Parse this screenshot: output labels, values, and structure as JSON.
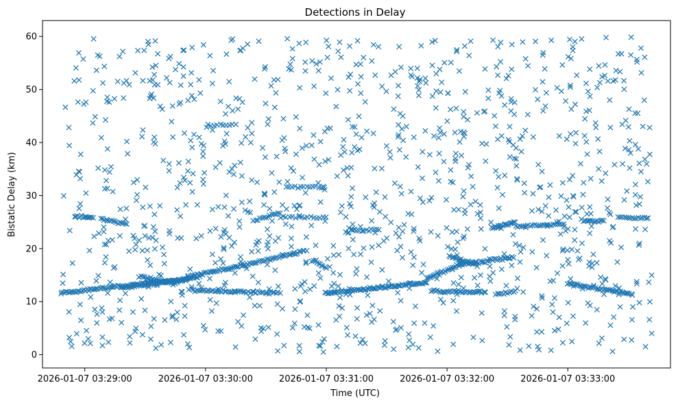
{
  "chart_data": {
    "type": "scatter",
    "title": "Detections in Delay",
    "xlabel": "Time (UTC)",
    "ylabel": "Bistatic Delay (km)",
    "marker": "x",
    "color": "#1f77b4",
    "grid": false,
    "legend": "none",
    "xlim": [
      "2026-01-07 03:28:39",
      "2026-01-07 03:33:51"
    ],
    "ylim": [
      -2.5,
      63
    ],
    "xticks": [
      "2026-01-07 03:29:00",
      "2026-01-07 03:30:00",
      "2026-01-07 03:31:00",
      "2026-01-07 03:32:00",
      "2026-01-07 03:33:00"
    ],
    "yticks": [
      0,
      10,
      20,
      30,
      40,
      50,
      60
    ],
    "tracks": [
      {
        "x0": "2026-01-07 03:28:48",
        "x1": "2026-01-07 03:29:57",
        "y0": 11.6,
        "y1": 14.6,
        "n": 90
      },
      {
        "x0": "2026-01-07 03:29:18",
        "x1": "2026-01-07 03:29:52",
        "y0": 12.6,
        "y1": 14.2,
        "n": 40
      },
      {
        "x0": "2026-01-07 03:29:27",
        "x1": "2026-01-07 03:29:45",
        "y0": 14.8,
        "y1": 13.4,
        "n": 20
      },
      {
        "x0": "2026-01-07 03:29:51",
        "x1": "2026-01-07 03:30:21",
        "y0": 14.8,
        "y1": 17.0,
        "n": 40
      },
      {
        "x0": "2026-01-07 03:30:21",
        "x1": "2026-01-07 03:30:50",
        "y0": 17.0,
        "y1": 19.6,
        "n": 35
      },
      {
        "x0": "2026-01-07 03:29:52",
        "x1": "2026-01-07 03:30:37",
        "y0": 12.2,
        "y1": 11.6,
        "n": 50
      },
      {
        "x0": "2026-01-07 03:28:55",
        "x1": "2026-01-07 03:29:04",
        "y0": 26.2,
        "y1": 25.8,
        "n": 14
      },
      {
        "x0": "2026-01-07 03:29:08",
        "x1": "2026-01-07 03:29:21",
        "y0": 25.6,
        "y1": 24.6,
        "n": 16
      },
      {
        "x0": "2026-01-07 03:30:24",
        "x1": "2026-01-07 03:30:37",
        "y0": 25.2,
        "y1": 26.8,
        "n": 14
      },
      {
        "x0": "2026-01-07 03:30:37",
        "x1": "2026-01-07 03:31:00",
        "y0": 26.0,
        "y1": 25.8,
        "n": 16
      },
      {
        "x0": "2026-01-07 03:30:53",
        "x1": "2026-01-07 03:31:00",
        "y0": 17.8,
        "y1": 16.4,
        "n": 10
      },
      {
        "x0": "2026-01-07 03:31:00",
        "x1": "2026-01-07 03:31:50",
        "y0": 11.6,
        "y1": 13.6,
        "n": 70
      },
      {
        "x0": "2026-01-07 03:31:50",
        "x1": "2026-01-07 03:32:07",
        "y0": 14.4,
        "y1": 17.0,
        "n": 26
      },
      {
        "x0": "2026-01-07 03:32:07",
        "x1": "2026-01-07 03:32:33",
        "y0": 17.0,
        "y1": 18.4,
        "n": 34
      },
      {
        "x0": "2026-01-07 03:31:52",
        "x1": "2026-01-07 03:32:19",
        "y0": 12.0,
        "y1": 11.8,
        "n": 34
      },
      {
        "x0": "2026-01-07 03:32:01",
        "x1": "2026-01-07 03:32:15",
        "y0": 18.6,
        "y1": 16.8,
        "n": 20
      },
      {
        "x0": "2026-01-07 03:31:10",
        "x1": "2026-01-07 03:31:26",
        "y0": 23.2,
        "y1": 23.6,
        "n": 14
      },
      {
        "x0": "2026-01-07 03:32:22",
        "x1": "2026-01-07 03:32:34",
        "y0": 23.8,
        "y1": 25.0,
        "n": 18
      },
      {
        "x0": "2026-01-07 03:32:34",
        "x1": "2026-01-07 03:32:58",
        "y0": 24.2,
        "y1": 24.6,
        "n": 24
      },
      {
        "x0": "2026-01-07 03:33:07",
        "x1": "2026-01-07 03:33:18",
        "y0": 25.2,
        "y1": 25.2,
        "n": 14
      },
      {
        "x0": "2026-01-07 03:33:25",
        "x1": "2026-01-07 03:33:40",
        "y0": 25.8,
        "y1": 25.8,
        "n": 16
      },
      {
        "x0": "2026-01-07 03:33:00",
        "x1": "2026-01-07 03:33:32",
        "y0": 13.4,
        "y1": 11.4,
        "n": 45
      },
      {
        "x0": "2026-01-07 03:32:24",
        "x1": "2026-01-07 03:32:35",
        "y0": 11.2,
        "y1": 12.2,
        "n": 12
      },
      {
        "x0": "2026-01-07 03:30:40",
        "x1": "2026-01-07 03:30:59",
        "y0": 31.6,
        "y1": 31.6,
        "n": 14
      },
      {
        "x0": "2026-01-07 03:30:01",
        "x1": "2026-01-07 03:30:15",
        "y0": 43.4,
        "y1": 43.4,
        "n": 10
      }
    ],
    "clutter": {
      "x_range": [
        "2026-01-07 03:28:48",
        "2026-01-07 03:33:42"
      ],
      "y_range": [
        0.5,
        60
      ],
      "n": 1150
    }
  }
}
